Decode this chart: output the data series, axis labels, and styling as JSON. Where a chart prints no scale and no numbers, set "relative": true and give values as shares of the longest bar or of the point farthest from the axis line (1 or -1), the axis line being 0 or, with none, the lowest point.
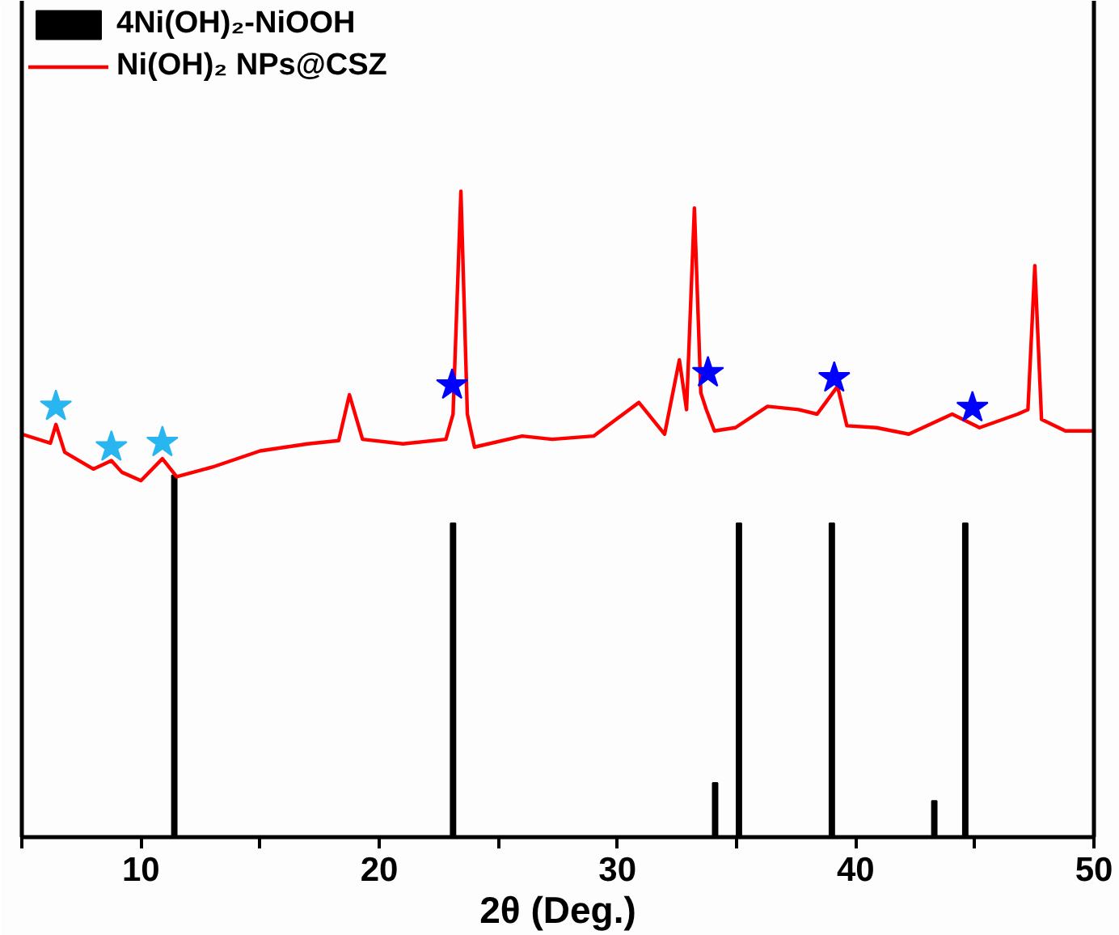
{
  "chart_data": {
    "type": "line",
    "xlabel": "2θ (Deg.)",
    "relative": true,
    "xlim": [
      5,
      50
    ],
    "xticks": [
      {
        "value": 5,
        "label": null
      },
      10,
      {
        "value": 15,
        "label": null
      },
      20,
      {
        "value": 25,
        "label": null
      },
      30,
      {
        "value": 35,
        "label": null
      },
      40,
      {
        "value": 45,
        "label": null
      },
      50
    ],
    "legend": "top left",
    "grid": false,
    "series": [
      {
        "name": "4Ni(OH)₂-NiOOH",
        "type": "bar",
        "color": "#000000",
        "x": [
          11.4,
          23.1,
          34.1,
          35.1,
          39.0,
          43.3,
          44.6
        ],
        "values": [
          0.56,
          0.486,
          0.084,
          0.486,
          0.486,
          0.056,
          0.486
        ]
      },
      {
        "name": "Ni(OH)₂ NPs@CSZ",
        "color": "#ff0000",
        "x": [
          5.0,
          6.2,
          6.43,
          6.8,
          8.0,
          8.76,
          9.2,
          10.0,
          10.9,
          11.5,
          13.0,
          15.0,
          17.0,
          18.3,
          18.75,
          19.3,
          21.0,
          22.8,
          23.1,
          23.43,
          23.7,
          24.0,
          26.0,
          27.26,
          29.0,
          30.9,
          31.98,
          32.6,
          32.9,
          33.23,
          33.5,
          33.73,
          34.07,
          34.95,
          36.3,
          37.6,
          38.38,
          39.24,
          39.63,
          40.87,
          42.23,
          44.05,
          45.2,
          46.8,
          47.23,
          47.52,
          47.8,
          48.8,
          49.95
        ],
        "values": [
          0.624,
          0.61,
          0.639,
          0.596,
          0.57,
          0.583,
          0.565,
          0.552,
          0.586,
          0.558,
          0.573,
          0.598,
          0.609,
          0.614,
          0.685,
          0.616,
          0.609,
          0.616,
          0.655,
          1.0,
          0.655,
          0.604,
          0.621,
          0.616,
          0.621,
          0.673,
          0.624,
          0.739,
          0.662,
          0.974,
          0.688,
          0.662,
          0.629,
          0.634,
          0.667,
          0.662,
          0.655,
          0.698,
          0.637,
          0.634,
          0.624,
          0.655,
          0.634,
          0.655,
          0.662,
          0.885,
          0.647,
          0.629,
          0.629
        ]
      },
      {
        "type": "scatter",
        "marker": "star",
        "color": "#29b6f0",
        "x": [
          6.43,
          8.76,
          10.9
        ],
        "values": [
          0.667,
          0.604,
          0.611
        ]
      },
      {
        "type": "scatter",
        "marker": "star",
        "color": "#0000ff",
        "x": [
          23.06,
          33.8,
          39.1,
          44.9
        ],
        "values": [
          0.7,
          0.719,
          0.711,
          0.665
        ]
      }
    ]
  }
}
